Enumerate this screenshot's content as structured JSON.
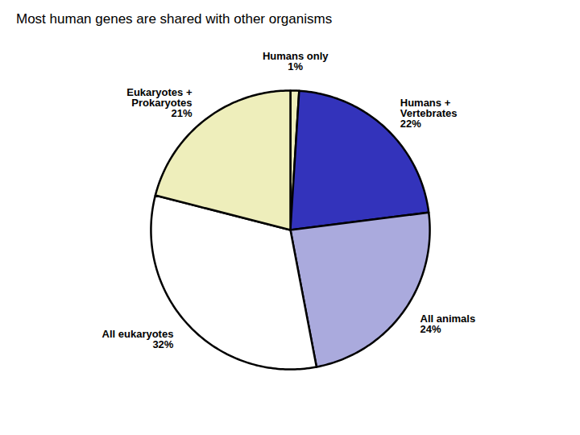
{
  "chart_data": {
    "type": "pie",
    "title": "Most human genes are shared with other organisms",
    "categories": [
      "Humans only",
      "Humans +\nVertebrates",
      "All animals",
      "All eukaryotes",
      "Eukaryotes +\nProkaryotes"
    ],
    "values": [
      1,
      22,
      24,
      32,
      21
    ],
    "value_labels": [
      "1%",
      "22%",
      "24%",
      "32%",
      "21%"
    ],
    "colors": [
      "#eeeebb",
      "#3333bb",
      "#aaaadd",
      "#ffffff",
      "#eeeebb"
    ],
    "data_labels": true
  }
}
